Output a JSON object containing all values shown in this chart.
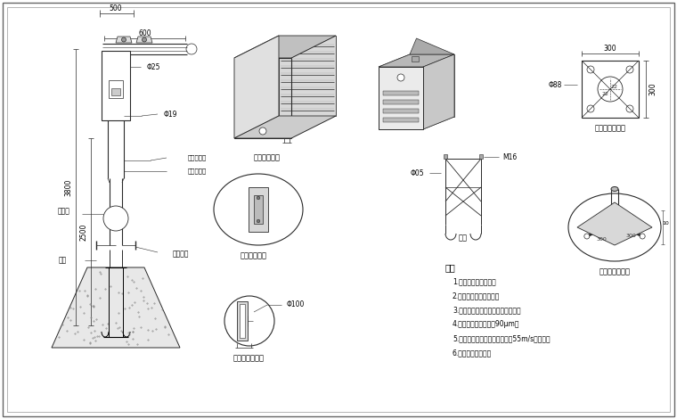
{
  "bg_color": "#ffffff",
  "line_color": "#2a2a2a",
  "notes_title": "说明",
  "notes": [
    "1.主干为国标镀锌管。",
    "2.上下法兰加强筋连接。",
    "3.喷漆后不再进行任何加工和焊接。",
    "4.钢管镀特锌层管护为90μm。",
    "5.立杆、横臂和其它部件应能抗55m/s的风速。",
    "6.接管、避雷针可拆"
  ],
  "labels": {
    "waterproof_box": "防水箱放大图",
    "repair_hole": "维修孔放大图",
    "flange_machine": "桅机法兰放大图",
    "ground_cage": "地笼",
    "base_flange_front": "底座法兰正视图",
    "base_flange_enlarged": "底座法兰放大图",
    "repair_hole_label": "维修孔",
    "base_flange_label": "底座法兰",
    "top_width": "500",
    "camera_span": "600",
    "pipe_d25": "Φ25",
    "pipe_d19": "Φ19",
    "h3800": "3800",
    "h2500": "2500",
    "flange_d88": "Φ88",
    "dim300": "300",
    "bolt_m16": "M16",
    "dim105": "Φ05",
    "pipe_100": "Φ100",
    "upper_paint": "上层灰色漆",
    "lower_paint": "下层黑色漆"
  }
}
